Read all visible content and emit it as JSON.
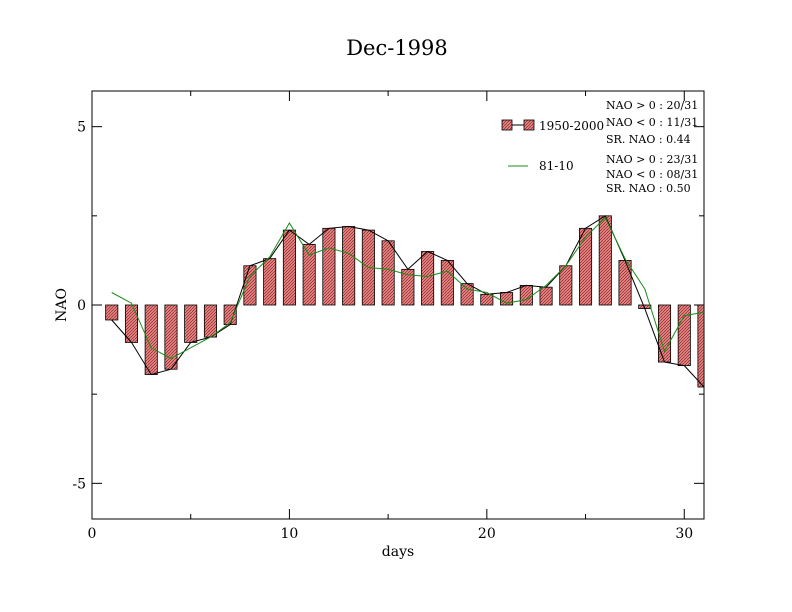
{
  "chart_data": {
    "type": "bar",
    "title": "Dec-1998",
    "xlabel": "days",
    "ylabel": "NAO",
    "xlim": [
      0,
      31
    ],
    "ylim": [
      -6,
      6
    ],
    "x_ticks": [
      0,
      10,
      20,
      30
    ],
    "x_tick_labels": [
      "0",
      "10",
      "20",
      "30"
    ],
    "y_ticks": [
      -5,
      0,
      5
    ],
    "y_tick_labels": [
      "-5",
      "0",
      "5"
    ],
    "grid": false,
    "legend_position": "top-right",
    "x": [
      1,
      2,
      3,
      4,
      5,
      6,
      7,
      8,
      9,
      10,
      11,
      12,
      13,
      14,
      15,
      16,
      17,
      18,
      19,
      20,
      21,
      22,
      23,
      24,
      25,
      26,
      27,
      28,
      29,
      30,
      31
    ],
    "series": [
      {
        "name": "1950-2000",
        "type": "bar",
        "color": "#e07070",
        "values": [
          -0.42,
          -1.05,
          -1.95,
          -1.8,
          -1.05,
          -0.9,
          -0.55,
          1.1,
          1.3,
          2.1,
          1.7,
          2.15,
          2.2,
          2.1,
          1.8,
          1.0,
          1.5,
          1.25,
          0.6,
          0.3,
          0.35,
          0.55,
          0.5,
          1.1,
          2.15,
          2.5,
          1.25,
          -0.1,
          -1.6,
          -1.7,
          -2.3
        ]
      },
      {
        "name": "81-10",
        "type": "line",
        "color": "#1a8c1a",
        "values": [
          0.35,
          0.05,
          -1.2,
          -1.5,
          -1.2,
          -0.9,
          -0.5,
          0.8,
          1.35,
          2.3,
          1.4,
          1.6,
          1.45,
          1.05,
          1.0,
          0.85,
          0.8,
          0.95,
          0.45,
          0.35,
          0.05,
          0.15,
          0.55,
          1.1,
          1.9,
          2.45,
          1.3,
          0.45,
          -1.3,
          -0.3,
          -0.2
        ]
      }
    ],
    "annotations": [
      [
        "NAO > 0 : 20/31",
        "NAO < 0 : 11/31",
        "SR. NAO :  0.44"
      ],
      [
        "NAO > 0 : 23/31",
        "NAO < 0 : 08/31",
        "SR. NAO :  0.50"
      ]
    ]
  }
}
